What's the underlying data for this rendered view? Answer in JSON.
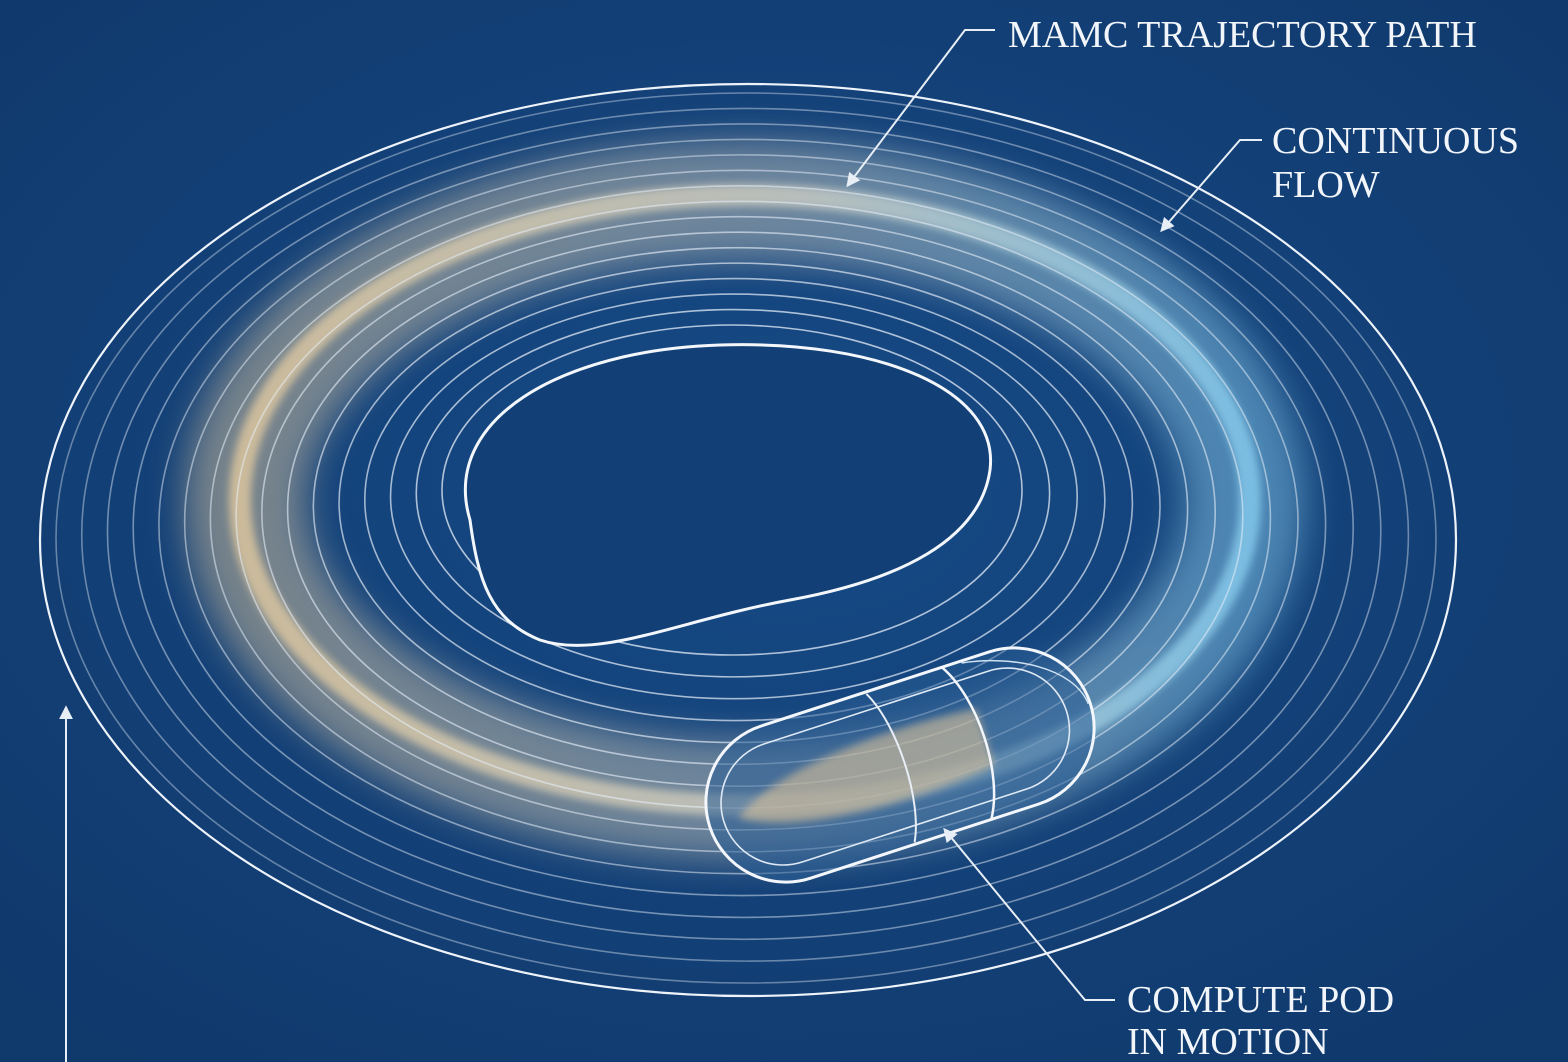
{
  "labels": [
    {
      "lines": [
        "MAMC TRAJECTORY PATH"
      ]
    },
    {
      "lines": [
        "CONTINUOUS",
        "FLOW"
      ]
    },
    {
      "lines": [
        "COMPUTE POD",
        "IN MOTION"
      ]
    }
  ]
}
